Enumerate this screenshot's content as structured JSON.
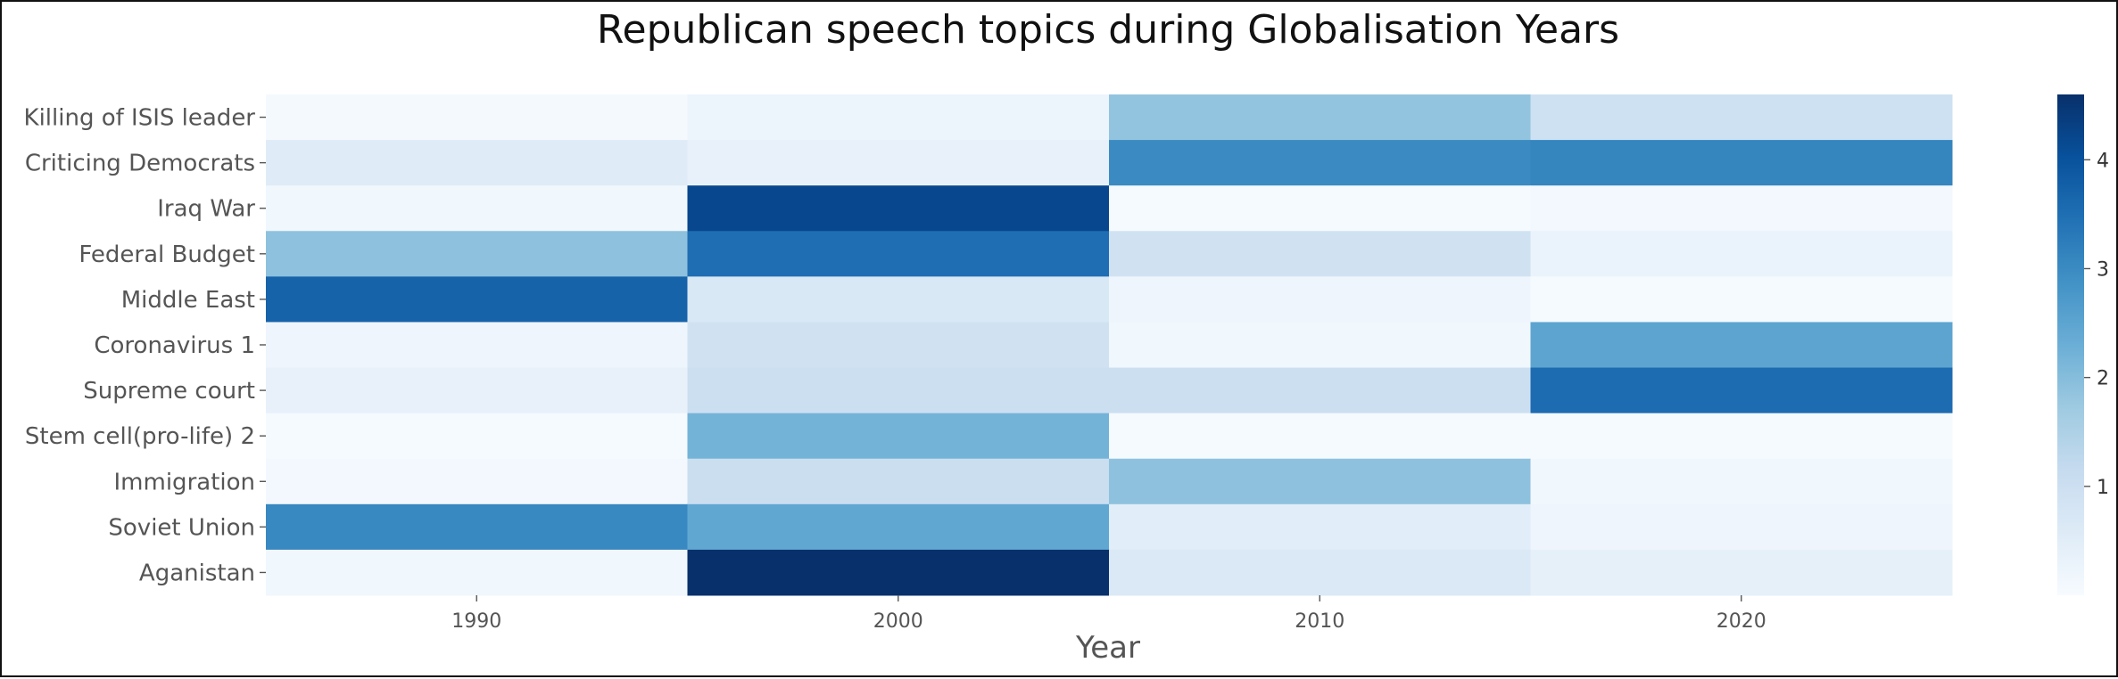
{
  "chart_data": {
    "type": "heatmap",
    "title": "Republican speech topics during Globalisation Years",
    "xlabel": "Year",
    "ylabel": "",
    "x": [
      "1990",
      "2000",
      "2010",
      "2020"
    ],
    "y": [
      "Killing of ISIS leader",
      "Criticing Democrats",
      "Iraq War",
      "Federal Budget",
      "Middle East",
      "Coronavirus 1",
      "Supreme court",
      "Stem cell(pro-life) 2",
      "Immigration",
      "Soviet Union",
      "Aganistan"
    ],
    "values": [
      [
        0.08,
        0.25,
        1.85,
        0.95
      ],
      [
        0.55,
        0.35,
        3.0,
        3.1
      ],
      [
        0.15,
        4.2,
        0.05,
        0.1
      ],
      [
        1.9,
        3.5,
        0.9,
        0.3
      ],
      [
        3.7,
        0.7,
        0.2,
        0.05
      ],
      [
        0.2,
        0.9,
        0.15,
        2.5
      ],
      [
        0.35,
        1.0,
        1.0,
        3.55
      ],
      [
        0.05,
        2.2,
        0.05,
        0.05
      ],
      [
        0.1,
        1.05,
        1.9,
        0.15
      ],
      [
        3.05,
        2.45,
        0.5,
        0.2
      ],
      [
        0.15,
        4.7,
        0.65,
        0.4
      ]
    ],
    "colorbar": {
      "min": 0,
      "max": 4.6,
      "ticks": [
        1,
        2,
        3,
        4
      ],
      "colormap": "Blues"
    },
    "grid": false,
    "legend": "colorbar-right"
  },
  "colors": {
    "blues_scale": [
      "#f7fbff",
      "#deebf7",
      "#c6dbef",
      "#9ecae1",
      "#6baed6",
      "#4292c6",
      "#2171b5",
      "#08519c",
      "#08306b"
    ]
  }
}
